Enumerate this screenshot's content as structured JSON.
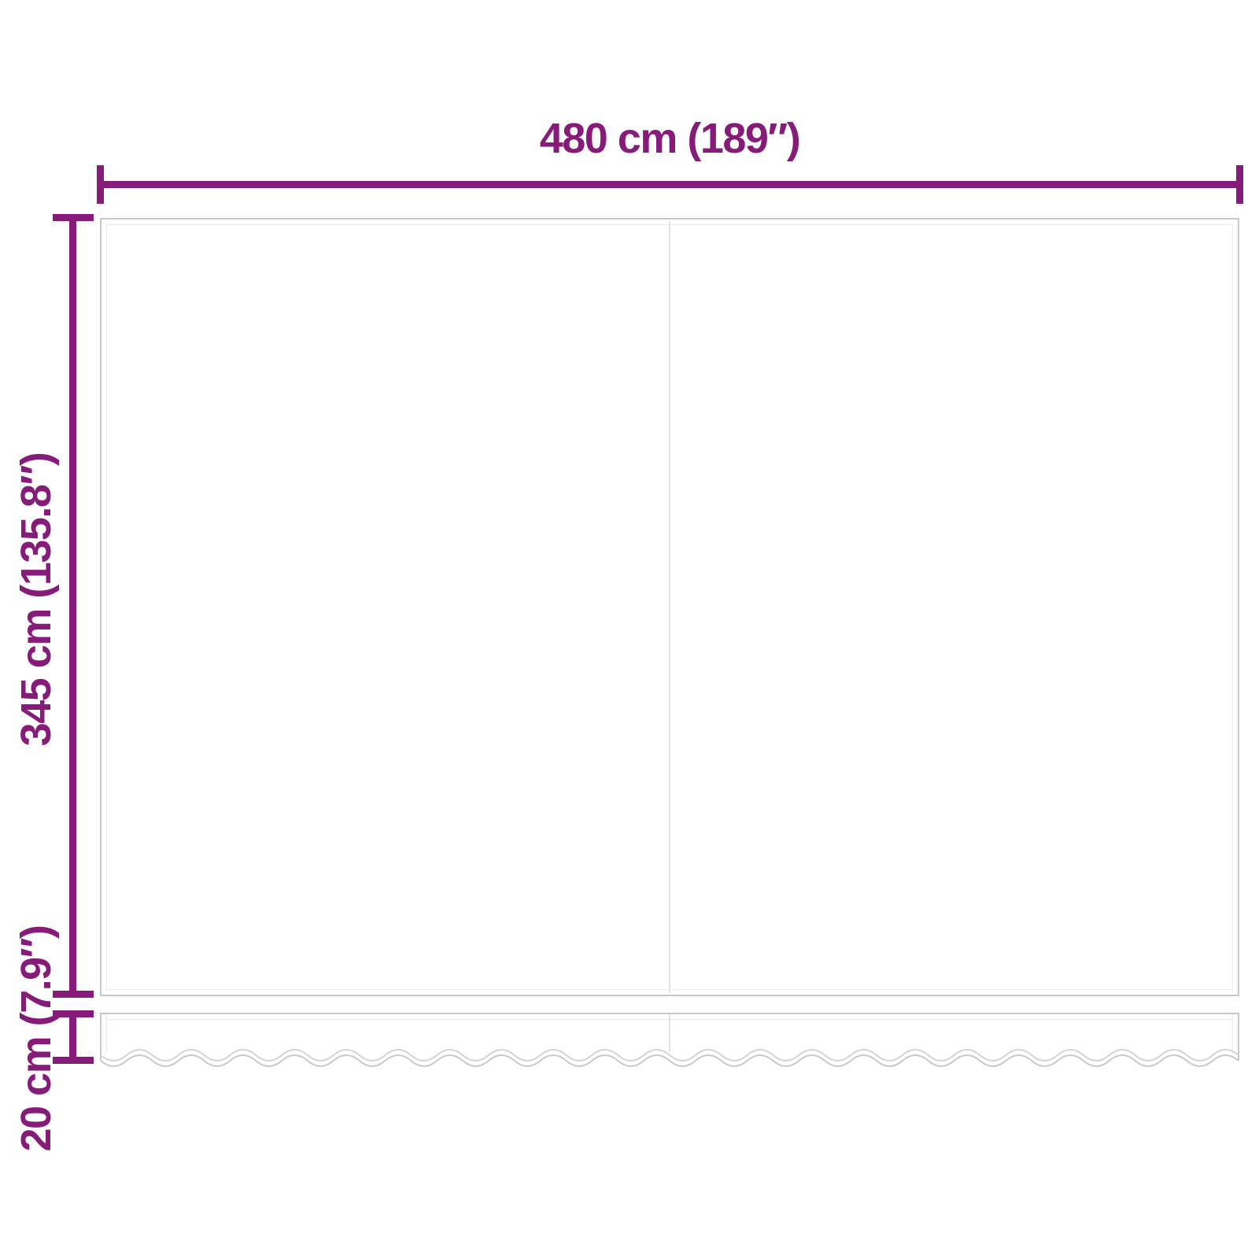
{
  "diagram": {
    "labels": {
      "width": "480 cm (189″)",
      "height": "345 cm (135.8″)",
      "valance_height": "20 cm (7.9″)"
    },
    "colors": {
      "dimension": "#871b79",
      "outline": "#c9c9c9",
      "inner_line": "#ededed",
      "seam": "#e3e3e3",
      "fabric": "#ffffff",
      "background": "#ffffff"
    }
  }
}
